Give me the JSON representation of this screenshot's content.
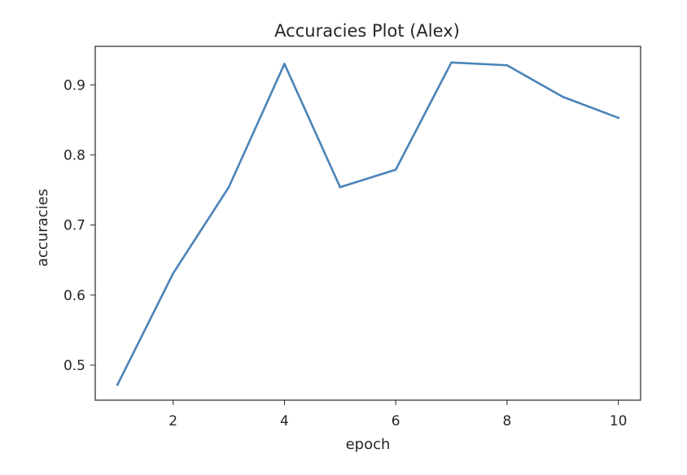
{
  "chart_data": {
    "type": "line",
    "title": "Accuracies Plot (Alex)",
    "xlabel": "epoch",
    "ylabel": "accuracies",
    "x": [
      1,
      2,
      3,
      4,
      5,
      6,
      7,
      8,
      9,
      10
    ],
    "series": [
      {
        "values": [
          0.472,
          0.631,
          0.754,
          0.93,
          0.754,
          0.779,
          0.932,
          0.928,
          0.883,
          0.853
        ],
        "color": "#4a83b8"
      }
    ],
    "xlim": [
      0.6,
      10.4
    ],
    "ylim": [
      0.45,
      0.955
    ],
    "xticks": [
      2,
      4,
      6,
      8,
      10
    ],
    "xtick_labels": [
      "2",
      "4",
      "6",
      "8",
      "10"
    ],
    "yticks": [
      0.5,
      0.6,
      0.7,
      0.8,
      0.9
    ],
    "ytick_labels": [
      "0.5",
      "0.6",
      "0.7",
      "0.8",
      "0.9"
    ],
    "grid": false
  }
}
